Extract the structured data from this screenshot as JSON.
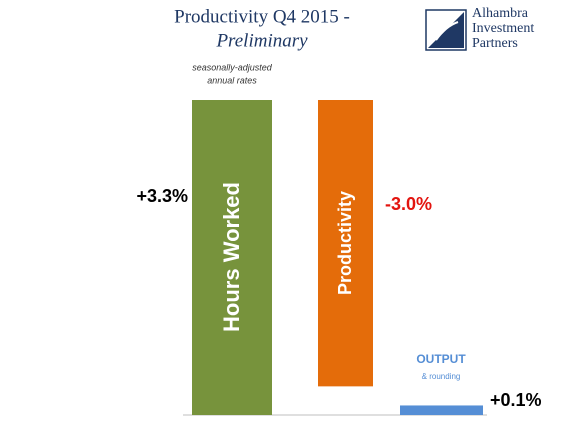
{
  "chart_data": {
    "type": "waterfall",
    "title": [
      "Productivity Q4 2015 -",
      "Preliminary"
    ],
    "subtitle": [
      "seasonally-adjusted",
      "annual rates"
    ],
    "categories": [
      "Hours Worked",
      "Productivity",
      "OUTPUT"
    ],
    "values": [
      3.3,
      -3.0,
      0.1
    ],
    "value_labels": [
      "+3.3%",
      "-3.0%",
      "+0.1%"
    ],
    "colors": [
      "#77933c",
      "#e46c0a",
      "#558ed5"
    ],
    "label_colors": [
      "#000000",
      "#e3140f",
      "#000000"
    ],
    "annotation": "& rounding"
  },
  "logo": [
    "Alhambra",
    "Investment",
    "Partners"
  ]
}
